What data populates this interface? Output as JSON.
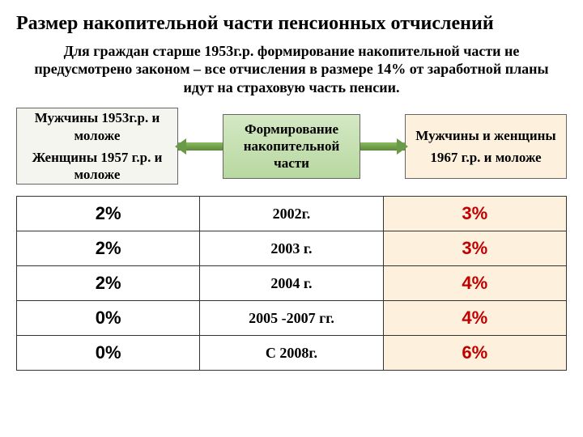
{
  "title": "Размер накопительной части пенсионных отчислений",
  "subtitle": "Для граждан старше 1953г.р. формирование накопительной части не предусмотрено законом – все отчисления в размере 14% от заработной планы идут на страховую часть пенсии.",
  "box_left_l1": "Мужчины   1953г.р. и моложе",
  "box_left_l2": "Женщины 1957 г.р. и моложе",
  "box_center": "Формирование накопительной части",
  "box_right_l1": "Мужчины и женщины",
  "box_right_l2": "1967 г.р. и моложе",
  "rows": [
    {
      "p1": "2%",
      "year": "2002г.",
      "p2": "3%"
    },
    {
      "p1": "2%",
      "year": "2003 г.",
      "p2": "3%"
    },
    {
      "p1": "2%",
      "year": "2004 г.",
      "p2": "4%"
    },
    {
      "p1": "0%",
      "year": "2005 -2007 гг.",
      "p2": "4%"
    },
    {
      "p1": "0%",
      "year": "С 2008г.",
      "p2": "6%"
    }
  ],
  "colors": {
    "accent": "#c00000",
    "tan": "#fdf0dc",
    "green": "#b8d8a0"
  }
}
